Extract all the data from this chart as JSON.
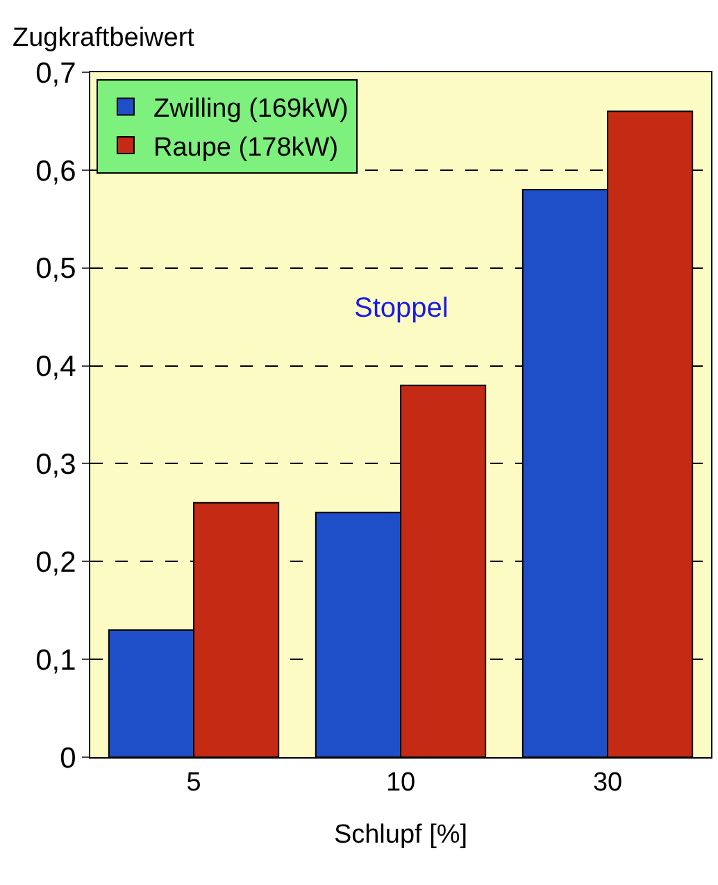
{
  "chart_data": {
    "type": "bar",
    "ylabel": "Zugkraftbeiwert",
    "xlabel": "Schlupf [%]",
    "categories": [
      "5",
      "10",
      "30"
    ],
    "series": [
      {
        "name": "Zwilling (169kW)",
        "color": "#1f4fc8",
        "values": [
          0.13,
          0.25,
          0.58
        ]
      },
      {
        "name": "Raupe (178kW)",
        "color": "#c42a14",
        "values": [
          0.26,
          0.38,
          0.66
        ]
      }
    ],
    "ylim": [
      0,
      0.7
    ],
    "yticks": [
      0,
      {
        "value": 0.1,
        "label": "0,1"
      },
      {
        "value": 0.2,
        "label": "0,2"
      },
      {
        "value": 0.3,
        "label": "0,3"
      },
      {
        "value": 0.4,
        "label": "0,4"
      },
      {
        "value": 0.5,
        "label": "0,5"
      },
      {
        "value": 0.6,
        "label": "0,6"
      },
      {
        "value": 0.7,
        "label": "0,7"
      }
    ],
    "grid": "y",
    "legend": "top left",
    "annotations": [
      "Stoppel"
    ]
  }
}
